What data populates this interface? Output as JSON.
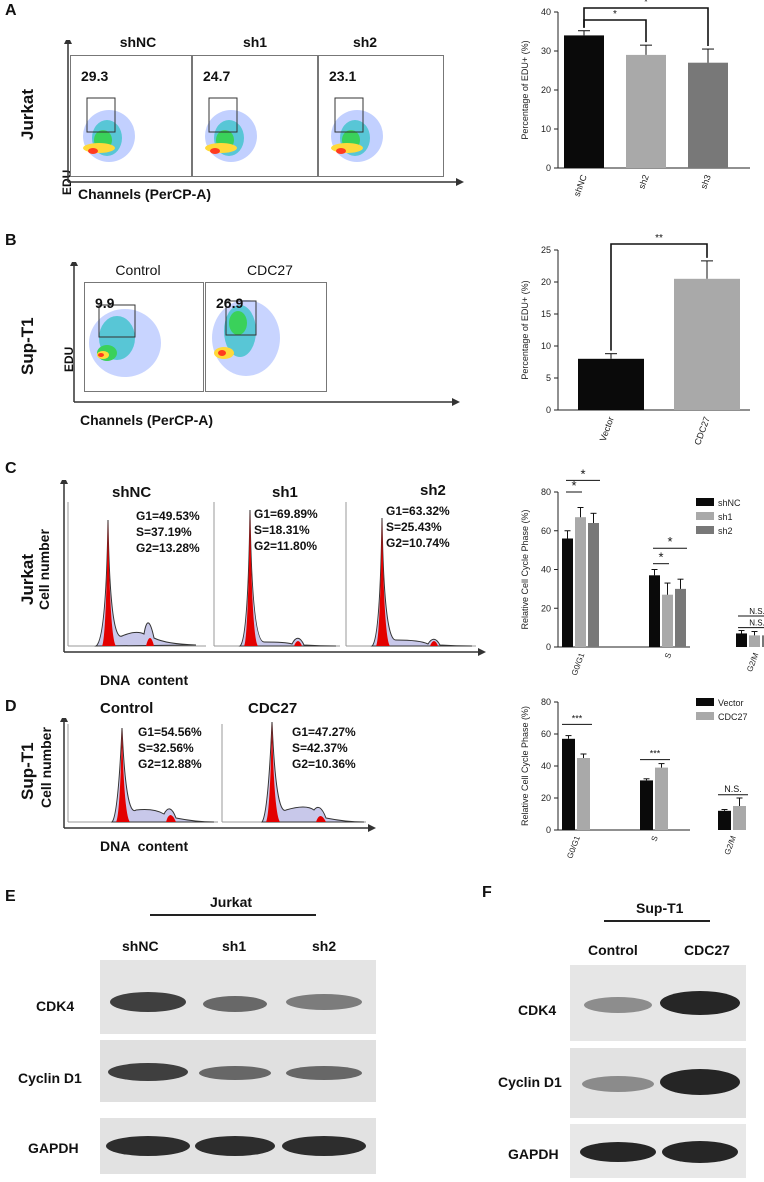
{
  "panels": {
    "A": {
      "letter": "A",
      "cell_line": "Jurkat",
      "y_axis": "EDU",
      "x_axis": "Channels (PerCP-A)",
      "columns": [
        {
          "label": "shNC",
          "value": "29.3"
        },
        {
          "label": "sh1",
          "value": "24.7"
        },
        {
          "label": "sh2",
          "value": "23.1"
        }
      ]
    },
    "B": {
      "letter": "B",
      "cell_line": "Sup-T1",
      "y_axis": "EDU",
      "x_axis": "Channels (PerCP-A)",
      "columns": [
        {
          "label": "Control",
          "value": "9.9"
        },
        {
          "label": "CDC27",
          "value": "26.9"
        }
      ]
    },
    "C": {
      "letter": "C",
      "cell_line": "Jurkat",
      "y_axis": "Cell number",
      "x_axis": "DNA  content",
      "columns": [
        {
          "label": "shNC",
          "g1": "G1=49.53%",
          "s": "S=37.19%",
          "g2": "G2=13.28%"
        },
        {
          "label": "sh1",
          "g1": "G1=69.89%",
          "s": "S=18.31%",
          "g2": "G2=11.80%"
        },
        {
          "label": "sh2",
          "g1": "G1=63.32%",
          "s": "S=25.43%",
          "g2": "G2=10.74%"
        }
      ]
    },
    "D": {
      "letter": "D",
      "cell_line": "Sup-T1",
      "y_axis": "Cell number",
      "x_axis": "DNA  content",
      "columns": [
        {
          "label": "Control",
          "g1": "G1=54.56%",
          "s": "S=32.56%",
          "g2": "G2=12.88%"
        },
        {
          "label": "CDC27",
          "g1": "G1=47.27%",
          "s": "S=42.37%",
          "g2": "G2=10.36%"
        }
      ]
    },
    "E": {
      "letter": "E",
      "group": "Jurkat",
      "lanes": [
        "shNC",
        "sh1",
        "sh2"
      ],
      "proteins": [
        "CDK4",
        "Cyclin D1",
        "GAPDH"
      ]
    },
    "F": {
      "letter": "F",
      "group": "Sup-T1",
      "lanes": [
        "Control",
        "CDC27"
      ],
      "proteins": [
        "CDK4",
        "Cyclin D1",
        "GAPDH"
      ]
    }
  },
  "chart_data": [
    {
      "id": "A",
      "type": "bar",
      "categories": [
        "shNC",
        "sh2",
        "sh3"
      ],
      "values": [
        34,
        29,
        27
      ],
      "errors": [
        1.2,
        2.5,
        3.5
      ],
      "colors": [
        "#0a0a0a",
        "#a9a9a9",
        "#787878"
      ],
      "ylabel": "Percentage of EDU+ (%)",
      "ylim": [
        0,
        40
      ],
      "yticks": [
        "0",
        "10",
        "20",
        "30",
        "40"
      ],
      "significance": [
        {
          "from": 0,
          "to": 1,
          "label": "*"
        },
        {
          "from": 0,
          "to": 2,
          "label": "*"
        }
      ]
    },
    {
      "id": "B",
      "type": "bar",
      "categories": [
        "Vector",
        "CDC27"
      ],
      "values": [
        8,
        20.5
      ],
      "errors": [
        0.8,
        2.8
      ],
      "colors": [
        "#0a0a0a",
        "#a9a9a9"
      ],
      "ylabel": "Percentage of EDU+ (%)",
      "ylim": [
        0,
        25
      ],
      "yticks": [
        "0",
        "5",
        "10",
        "15",
        "20",
        "25"
      ],
      "significance": [
        {
          "from": 0,
          "to": 1,
          "label": "**"
        }
      ]
    },
    {
      "id": "C",
      "type": "bar",
      "categories": [
        "G0/G1",
        "S",
        "G2/M"
      ],
      "series": [
        {
          "name": "shNC",
          "values": [
            56,
            37,
            7
          ],
          "errors": [
            4,
            3,
            1.5
          ],
          "color": "#0a0a0a"
        },
        {
          "name": "sh1",
          "values": [
            67,
            27,
            6
          ],
          "errors": [
            5,
            6,
            2
          ],
          "color": "#a9a9a9"
        },
        {
          "name": "sh2",
          "values": [
            64,
            30,
            6
          ],
          "errors": [
            5,
            5,
            1.5
          ],
          "color": "#787878"
        }
      ],
      "ylabel": "Relative Cell Cycle Phase (%)",
      "ylim": [
        0,
        80
      ],
      "yticks": [
        "0",
        "20",
        "40",
        "60",
        "80"
      ],
      "annotations": [
        "*",
        "*",
        "*",
        "*",
        "N.S.",
        "N.S."
      ]
    },
    {
      "id": "D",
      "type": "bar",
      "categories": [
        "G0/G1",
        "S",
        "G2/M"
      ],
      "series": [
        {
          "name": "Vector",
          "values": [
            57,
            31,
            12
          ],
          "errors": [
            2,
            1,
            0.8
          ],
          "color": "#0a0a0a"
        },
        {
          "name": "CDC27",
          "values": [
            45,
            39,
            15
          ],
          "errors": [
            2.5,
            2.5,
            5
          ],
          "color": "#a9a9a9"
        }
      ],
      "ylabel": "Relative Cell Cycle Phase (%)",
      "ylim": [
        0,
        80
      ],
      "yticks": [
        "0",
        "20",
        "40",
        "60",
        "80"
      ],
      "annotations": [
        "***",
        "***",
        "N.S."
      ]
    }
  ]
}
